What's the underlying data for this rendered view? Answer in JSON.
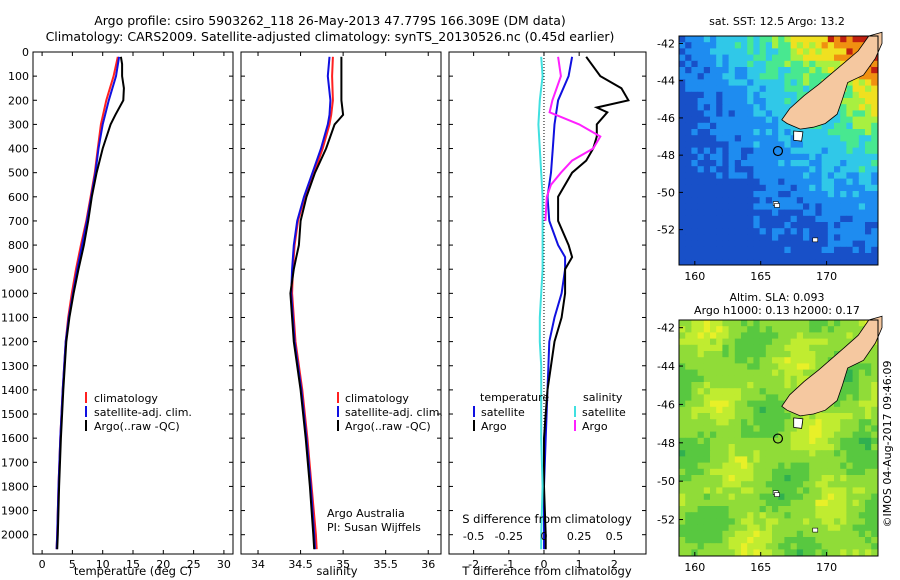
{
  "title_line1": "Argo profile: csiro 5903262_118 26-May-2013 47.779S 166.309E (DM data)",
  "title_line2": "Climatology: CARS2009. Satellite-adjusted climatology: synTS_20130526.nc (0.45d earlier)",
  "watermark": "©IMOS 04-Aug-2017 09:46:09",
  "colors": {
    "climatology": "#ff2020",
    "satellite": "#1010e0",
    "argo": "#000000",
    "cyan": "#40e0e0",
    "magenta": "#ff20ff",
    "land": "#f5c8a0"
  },
  "chart_data": [
    {
      "type": "line",
      "xlabel": "temperature (deg C)",
      "ylabel": "",
      "xlim": [
        -1.5,
        31.5
      ],
      "ylim": [
        2080,
        0
      ],
      "xticks": [
        0,
        5,
        10,
        15,
        20,
        25,
        30
      ],
      "yticks": [
        0,
        100,
        200,
        300,
        400,
        500,
        600,
        700,
        800,
        900,
        1000,
        1100,
        1200,
        1300,
        1400,
        1500,
        1600,
        1700,
        1800,
        1900,
        2000
      ],
      "legend": [
        "climatology",
        "satellite-adj. clim.",
        "Argo(..raw -QC)"
      ],
      "series": [
        {
          "name": "climatology",
          "color": "climatology",
          "depth": [
            20,
            100,
            200,
            300,
            400,
            500,
            600,
            700,
            800,
            900,
            1000,
            1100,
            1200,
            1400,
            1600,
            1800,
            2000,
            2060
          ],
          "values": [
            12.5,
            11.8,
            10.6,
            9.7,
            9.2,
            8.7,
            8.0,
            7.3,
            6.4,
            5.6,
            4.9,
            4.3,
            3.9,
            3.4,
            3.0,
            2.7,
            2.5,
            2.4
          ]
        },
        {
          "name": "satellite-adj. clim.",
          "color": "satellite",
          "depth": [
            20,
            100,
            200,
            300,
            400,
            500,
            600,
            700,
            800,
            900,
            1000,
            1100,
            1200,
            1400,
            1600,
            1800,
            2000,
            2060
          ],
          "values": [
            12.7,
            12.2,
            11.0,
            10.0,
            9.3,
            8.8,
            8.1,
            7.4,
            6.6,
            5.8,
            5.1,
            4.4,
            3.9,
            3.4,
            3.0,
            2.7,
            2.5,
            2.4
          ]
        },
        {
          "name": "Argo(..raw -QC)",
          "color": "argo",
          "depth": [
            20,
            50,
            100,
            150,
            200,
            260,
            300,
            400,
            500,
            600,
            700,
            800,
            900,
            1000,
            1100,
            1200,
            1400,
            1600,
            1800,
            2000,
            2060
          ],
          "values": [
            13.0,
            13.2,
            13.2,
            13.5,
            13.4,
            12.1,
            11.3,
            10.0,
            9.0,
            8.2,
            7.6,
            6.9,
            6.0,
            5.2,
            4.5,
            4.0,
            3.5,
            3.1,
            2.8,
            2.6,
            2.5
          ]
        }
      ]
    },
    {
      "type": "line",
      "xlabel": "salinity",
      "xlim": [
        33.8,
        36.15
      ],
      "ylim": [
        2080,
        0
      ],
      "xticks": [
        34,
        34.5,
        35,
        35.5,
        36
      ],
      "xticklabels": [
        "34",
        "34.5",
        "35",
        "35.5",
        "36"
      ],
      "legend": [
        "climatology",
        "satellite-adj. clim.",
        "Argo(..raw -QC)"
      ],
      "annotation": [
        "Argo Australia",
        "PI: Susan Wijffels"
      ],
      "series": [
        {
          "name": "climatology",
          "color": "climatology",
          "depth": [
            20,
            100,
            200,
            260,
            300,
            400,
            500,
            600,
            700,
            800,
            900,
            1000,
            1200,
            1400,
            1600,
            1800,
            2000,
            2060
          ],
          "values": [
            34.88,
            34.87,
            34.88,
            34.86,
            34.84,
            34.76,
            34.66,
            34.55,
            34.47,
            34.43,
            34.41,
            34.4,
            34.44,
            34.52,
            34.58,
            34.63,
            34.68,
            34.69
          ]
        },
        {
          "name": "satellite-adj. clim.",
          "color": "satellite",
          "depth": [
            20,
            100,
            200,
            260,
            300,
            400,
            500,
            600,
            700,
            800,
            900,
            1000,
            1200,
            1400,
            1600,
            1800,
            2000,
            2060
          ],
          "values": [
            34.84,
            34.82,
            34.85,
            34.84,
            34.82,
            34.74,
            34.64,
            34.54,
            34.46,
            34.42,
            34.4,
            34.39,
            34.43,
            34.51,
            34.57,
            34.62,
            34.66,
            34.67
          ]
        },
        {
          "name": "Argo(..raw -QC)",
          "color": "argo",
          "depth": [
            20,
            100,
            200,
            260,
            280,
            300,
            400,
            500,
            600,
            700,
            800,
            850,
            900,
            1000,
            1200,
            1400,
            1600,
            1800,
            2000,
            2060
          ],
          "values": [
            34.98,
            34.98,
            34.98,
            35.0,
            34.95,
            34.9,
            34.8,
            34.67,
            34.57,
            34.5,
            34.48,
            34.45,
            34.42,
            34.38,
            34.42,
            34.5,
            34.56,
            34.61,
            34.65,
            34.66
          ]
        }
      ]
    },
    {
      "type": "line",
      "xlabel": "T difference from climatology",
      "xlabel_top": "S difference from climatology",
      "xlim": [
        -2.7,
        2.9
      ],
      "ylim": [
        2080,
        0
      ],
      "xticks": [
        -2,
        -1,
        0,
        1,
        2
      ],
      "xticks_top": [
        -0.5,
        -0.25,
        0,
        0.25,
        0.5
      ],
      "legend_temperature": {
        "title": "temperature",
        "items": [
          "satellite",
          "Argo"
        ]
      },
      "legend_salinity": {
        "title": "salinity",
        "items": [
          "satellite",
          "Argo"
        ]
      },
      "series": [
        {
          "name": "satellite",
          "group": "temperature",
          "color": "satellite",
          "depth": [
            20,
            100,
            200,
            300,
            400,
            500,
            600,
            700,
            800,
            850,
            900,
            1000,
            1100,
            1200,
            1400,
            1600,
            1800,
            2000,
            2060
          ],
          "values": [
            0.8,
            0.7,
            0.4,
            0.3,
            0.25,
            0.2,
            0.1,
            0.15,
            0.4,
            0.6,
            0.6,
            0.5,
            0.3,
            0.15,
            0.1,
            0.05,
            0.0,
            0.0,
            0.0
          ]
        },
        {
          "name": "Argo",
          "group": "temperature",
          "color": "argo",
          "depth": [
            20,
            100,
            150,
            200,
            230,
            250,
            300,
            350,
            400,
            450,
            500,
            600,
            700,
            800,
            850,
            900,
            1000,
            1100,
            1200,
            1300,
            1400,
            1500,
            1600,
            1800,
            2000,
            2060
          ],
          "values": [
            1.2,
            1.6,
            2.2,
            2.4,
            1.5,
            1.8,
            1.5,
            1.5,
            1.4,
            1.2,
            0.8,
            0.4,
            0.4,
            0.7,
            0.8,
            0.6,
            0.6,
            0.5,
            0.3,
            0.2,
            0.1,
            0.05,
            0.0,
            0.0,
            0.05,
            0.05
          ]
        },
        {
          "name": "satellite",
          "group": "salinity",
          "color": "cyan",
          "depth": [
            20,
            100,
            200,
            300,
            400,
            500,
            600,
            700,
            800,
            900,
            1000,
            1100,
            1200,
            1300,
            1400,
            1600,
            1800,
            2000,
            2060
          ],
          "values": [
            -0.02,
            -0.01,
            -0.03,
            -0.04,
            -0.03,
            -0.02,
            -0.01,
            -0.01,
            -0.01,
            -0.01,
            -0.02,
            -0.03,
            -0.03,
            -0.02,
            -0.02,
            -0.02,
            -0.01,
            -0.02,
            -0.02
          ]
        },
        {
          "name": "Argo",
          "group": "salinity",
          "color": "magenta",
          "depth": [
            20,
            100,
            200,
            250,
            300,
            350,
            400,
            450,
            500,
            550,
            600,
            700
          ],
          "values": [
            0.1,
            0.12,
            0.06,
            0.04,
            0.25,
            0.4,
            0.35,
            0.2,
            0.12,
            0.05,
            0.02,
            0.01
          ]
        }
      ]
    }
  ],
  "maps": [
    {
      "title": "sat. SST: 12.5 Argo: 13.2",
      "xticks": [
        160,
        165,
        170
      ],
      "yticks": [
        -42,
        -44,
        -46,
        -48,
        -50,
        -52
      ],
      "lon": [
        158.8,
        173.9
      ],
      "lat": [
        -53.9,
        -41.6
      ],
      "kind": "sst"
    },
    {
      "title": "Altim. SLA: 0.093",
      "subtitle": "Argo h1000: 0.13 h2000: 0.17",
      "xticks": [
        160,
        165,
        170
      ],
      "yticks": [
        -42,
        -44,
        -46,
        -48,
        -50,
        -52
      ],
      "lon": [
        158.8,
        173.9
      ],
      "lat": [
        -53.9,
        -41.6
      ],
      "kind": "sla"
    }
  ],
  "argo_position": {
    "lon": 166.309,
    "lat": -47.779
  }
}
